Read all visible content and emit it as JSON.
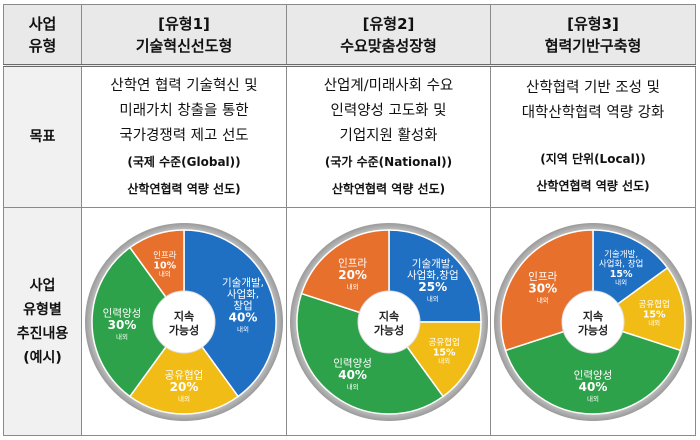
{
  "header": {
    "col0": [
      "사업",
      "유형"
    ],
    "cols": [
      {
        "tag": "[유형1]",
        "name": "기술혁신선도형"
      },
      {
        "tag": "[유형2]",
        "name": "수요맞춤성장형"
      },
      {
        "tag": "[유형3]",
        "name": "협력기반구축형"
      }
    ]
  },
  "goal": {
    "label": "목표",
    "cols": [
      {
        "lines": [
          "산학연 협력 기술혁신 및",
          "미래가치 창출을 통한",
          "국가경쟁력 제고 선도"
        ],
        "scope": "(국제 수준(Global))",
        "lead": "산학연협력 역량 선도)"
      },
      {
        "lines": [
          "산업계/미래사회 수요",
          "인력양성 고도화 및",
          "기업지원 활성화"
        ],
        "scope": "(국가 수준(National))",
        "lead": "산학연협력 역량 선도)"
      },
      {
        "lines": [
          "산학협력 기반 조성 및",
          "대학산학협력 역량 강화"
        ],
        "scope": "(지역 단위(Local))",
        "lead": "산학연협력 역량 선도)"
      }
    ]
  },
  "content": {
    "label": [
      "사업",
      "유형별",
      "추진내용",
      "(예시)"
    ],
    "center": [
      "지속",
      "가능성"
    ]
  },
  "chart_data": [
    {
      "type": "pie",
      "slices": [
        {
          "label": "기술개발, 사업화, 창업",
          "value": 40,
          "value_text": "40%",
          "note": "내외",
          "color": "#1f6fc3"
        },
        {
          "label": "공유협업",
          "value": 20,
          "value_text": "20%",
          "note": "내외",
          "color": "#f2bc16"
        },
        {
          "label": "인력양성",
          "value": 30,
          "value_text": "30%",
          "note": "내외",
          "color": "#2ea24a"
        },
        {
          "label": "인프라",
          "value": 10,
          "value_text": "10%",
          "note": "내외",
          "color": "#e8702d"
        }
      ]
    },
    {
      "type": "pie",
      "slices": [
        {
          "label": "기술개발, 사업화,창업",
          "value": 25,
          "value_text": "25%",
          "note": "내외",
          "color": "#1f6fc3"
        },
        {
          "label": "공유협업",
          "value": 15,
          "value_text": "15%",
          "note": "내외",
          "color": "#f2bc16"
        },
        {
          "label": "인력양성",
          "value": 40,
          "value_text": "40%",
          "note": "내외",
          "color": "#2ea24a"
        },
        {
          "label": "인프라",
          "value": 20,
          "value_text": "20%",
          "note": "내외",
          "color": "#e8702d"
        }
      ]
    },
    {
      "type": "pie",
      "slices": [
        {
          "label": "기술개발, 사업화, 창업",
          "value": 15,
          "value_text": "15%",
          "note": "내외",
          "color": "#1f6fc3"
        },
        {
          "label": "공유협업",
          "value": 15,
          "value_text": "15%",
          "note": "내외",
          "color": "#f2bc16"
        },
        {
          "label": "인력양성",
          "value": 40,
          "value_text": "40%",
          "note": "내외",
          "color": "#2ea24a"
        },
        {
          "label": "인프라",
          "value": 30,
          "value_text": "30%",
          "note": "내외",
          "color": "#e8702d"
        }
      ]
    }
  ]
}
